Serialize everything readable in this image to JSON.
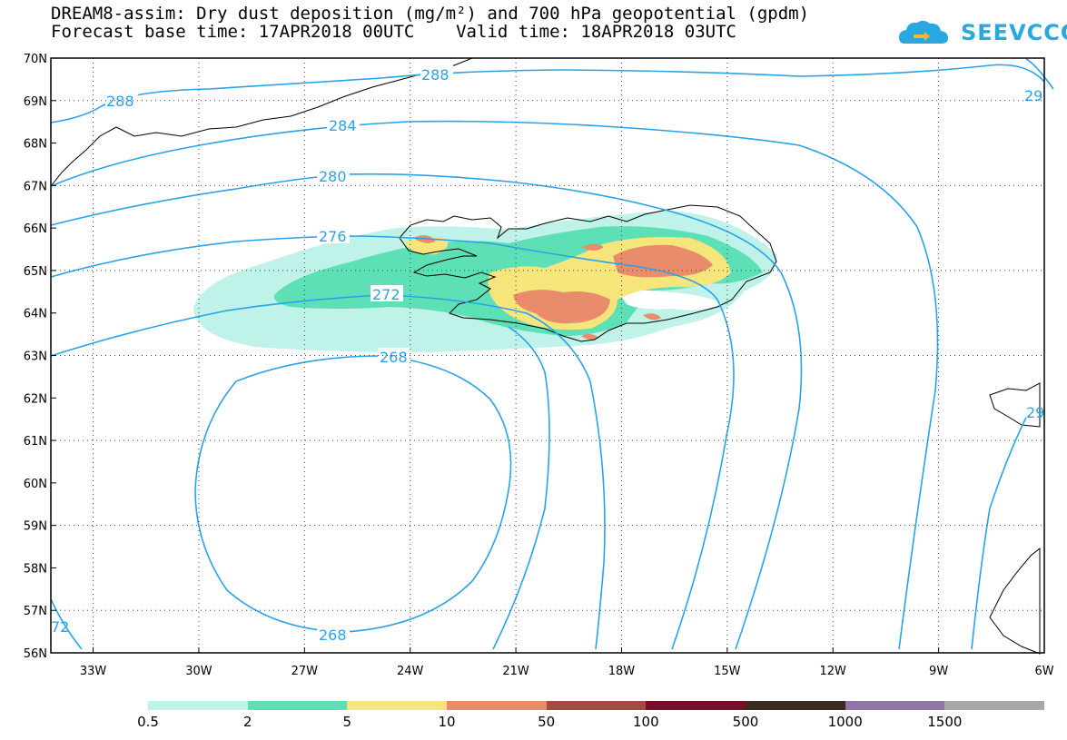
{
  "title_line1": "DREAM8-assim: Dry dust deposition (mg/m²) and 700 hPa geopotential (gpdm)",
  "title_line2": "Forecast base time: 17APR2018 00UTC    Valid time: 18APR2018 03UTC",
  "logo_text": "SEEVCCC",
  "lat_labels": [
    "70N",
    "69N",
    "68N",
    "67N",
    "66N",
    "65N",
    "64N",
    "63N",
    "62N",
    "61N",
    "60N",
    "59N",
    "58N",
    "57N",
    "56N"
  ],
  "lon_labels": [
    "33W",
    "30W",
    "27W",
    "24W",
    "21W",
    "18W",
    "15W",
    "12W",
    "9W",
    "6W"
  ],
  "contour_labels": [
    "288",
    "288",
    "284",
    "280",
    "276",
    "272",
    "268",
    "268",
    "29",
    "29",
    "72"
  ],
  "legend": {
    "labels": [
      "0.5",
      "2",
      "5",
      "10",
      "50",
      "100",
      "500",
      "1000",
      "1500"
    ],
    "colors": [
      "#bff2e8",
      "#5ee0b6",
      "#f5e57a",
      "#e98c6c",
      "#a44a44",
      "#7a0d28",
      "#3b2a1f",
      "#9076a6",
      "#a8a8a8"
    ]
  },
  "colors": {
    "contour": "#29a3e8",
    "coast": "#000000",
    "frame": "#000000"
  }
}
